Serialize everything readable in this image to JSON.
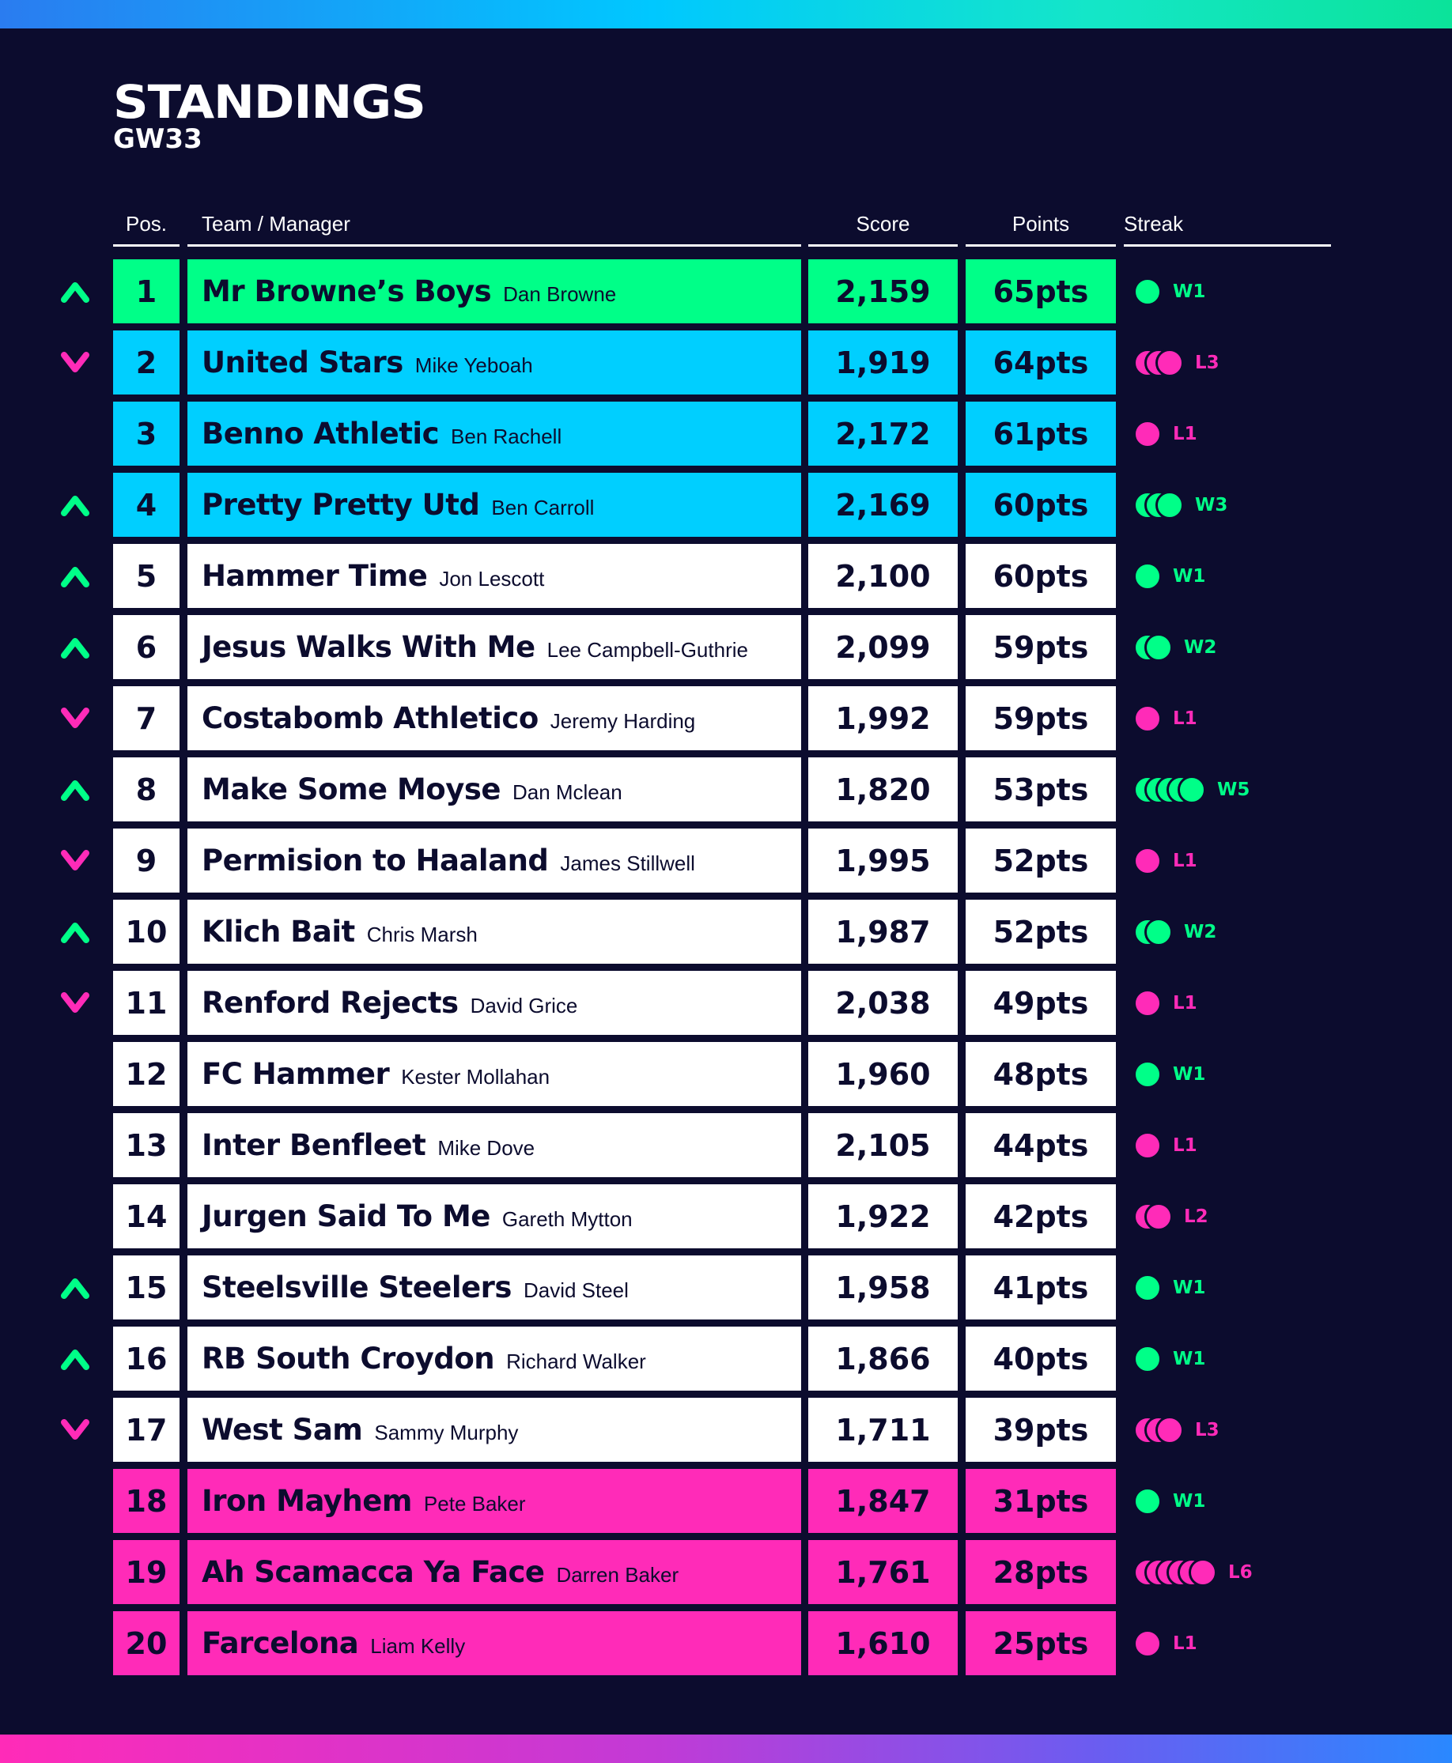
{
  "header": {
    "title": "STANDINGS",
    "subtitle": "GW33"
  },
  "columns": {
    "pos": "Pos.",
    "team": "Team / Manager",
    "score": "Score",
    "points": "Points",
    "streak": "Streak"
  },
  "colors": {
    "green": "#00ff88",
    "blue": "#00cfff",
    "white": "#ffffff",
    "pink": "#ff2bb8",
    "navy": "#0c0c2e"
  },
  "rows": [
    {
      "pos": "1",
      "team": "Mr Browne’s Boys",
      "manager": "Dan Browne",
      "score": "2,159",
      "points": "65pts",
      "move": "up",
      "zone": "green",
      "streak": {
        "label": "W1",
        "result": "W",
        "count": 1
      }
    },
    {
      "pos": "2",
      "team": "United Stars",
      "manager": "Mike Yeboah",
      "score": "1,919",
      "points": "64pts",
      "move": "down",
      "zone": "blue",
      "streak": {
        "label": "L3",
        "result": "L",
        "count": 3
      }
    },
    {
      "pos": "3",
      "team": "Benno Athletic",
      "manager": "Ben Rachell",
      "score": "2,172",
      "points": "61pts",
      "move": "none",
      "zone": "blue",
      "streak": {
        "label": "L1",
        "result": "L",
        "count": 1
      }
    },
    {
      "pos": "4",
      "team": "Pretty Pretty Utd",
      "manager": "Ben Carroll",
      "score": "2,169",
      "points": "60pts",
      "move": "up",
      "zone": "blue",
      "streak": {
        "label": "W3",
        "result": "W",
        "count": 3
      }
    },
    {
      "pos": "5",
      "team": "Hammer Time",
      "manager": "Jon Lescott",
      "score": "2,100",
      "points": "60pts",
      "move": "up",
      "zone": "white",
      "streak": {
        "label": "W1",
        "result": "W",
        "count": 1
      }
    },
    {
      "pos": "6",
      "team": "Jesus Walks With Me",
      "manager": "Lee Campbell-Guthrie",
      "score": "2,099",
      "points": "59pts",
      "move": "up",
      "zone": "white",
      "streak": {
        "label": "W2",
        "result": "W",
        "count": 2
      }
    },
    {
      "pos": "7",
      "team": "Costabomb Athletico",
      "manager": "Jeremy Harding",
      "score": "1,992",
      "points": "59pts",
      "move": "down",
      "zone": "white",
      "streak": {
        "label": "L1",
        "result": "L",
        "count": 1
      }
    },
    {
      "pos": "8",
      "team": "Make Some Moyse",
      "manager": "Dan Mclean",
      "score": "1,820",
      "points": "53pts",
      "move": "up",
      "zone": "white",
      "streak": {
        "label": "W5",
        "result": "W",
        "count": 5
      }
    },
    {
      "pos": "9",
      "team": "Permision to Haaland",
      "manager": "James Stillwell",
      "score": "1,995",
      "points": "52pts",
      "move": "down",
      "zone": "white",
      "streak": {
        "label": "L1",
        "result": "L",
        "count": 1
      }
    },
    {
      "pos": "10",
      "team": "Klich Bait",
      "manager": "Chris Marsh",
      "score": "1,987",
      "points": "52pts",
      "move": "up",
      "zone": "white",
      "streak": {
        "label": "W2",
        "result": "W",
        "count": 2
      }
    },
    {
      "pos": "11",
      "team": "Renford Rejects",
      "manager": "David Grice",
      "score": "2,038",
      "points": "49pts",
      "move": "down",
      "zone": "white",
      "streak": {
        "label": "L1",
        "result": "L",
        "count": 1
      }
    },
    {
      "pos": "12",
      "team": "FC Hammer",
      "manager": "Kester Mollahan",
      "score": "1,960",
      "points": "48pts",
      "move": "none",
      "zone": "white",
      "streak": {
        "label": "W1",
        "result": "W",
        "count": 1
      }
    },
    {
      "pos": "13",
      "team": "Inter Benfleet",
      "manager": "Mike Dove",
      "score": "2,105",
      "points": "44pts",
      "move": "none",
      "zone": "white",
      "streak": {
        "label": "L1",
        "result": "L",
        "count": 1
      }
    },
    {
      "pos": "14",
      "team": "Jurgen Said To Me",
      "manager": "Gareth Mytton",
      "score": "1,922",
      "points": "42pts",
      "move": "none",
      "zone": "white",
      "streak": {
        "label": "L2",
        "result": "L",
        "count": 2
      }
    },
    {
      "pos": "15",
      "team": "Steelsville Steelers",
      "manager": "David Steel",
      "score": "1,958",
      "points": "41pts",
      "move": "up",
      "zone": "white",
      "streak": {
        "label": "W1",
        "result": "W",
        "count": 1
      }
    },
    {
      "pos": "16",
      "team": "RB South Croydon",
      "manager": "Richard Walker",
      "score": "1,866",
      "points": "40pts",
      "move": "up",
      "zone": "white",
      "streak": {
        "label": "W1",
        "result": "W",
        "count": 1
      }
    },
    {
      "pos": "17",
      "team": "West Sam",
      "manager": "Sammy Murphy",
      "score": "1,711",
      "points": "39pts",
      "move": "down",
      "zone": "white",
      "streak": {
        "label": "L3",
        "result": "L",
        "count": 3
      }
    },
    {
      "pos": "18",
      "team": "Iron Mayhem",
      "manager": "Pete Baker",
      "score": "1,847",
      "points": "31pts",
      "move": "none",
      "zone": "pink",
      "streak": {
        "label": "W1",
        "result": "W",
        "count": 1
      }
    },
    {
      "pos": "19",
      "team": "Ah Scamacca Ya Face",
      "manager": "Darren Baker",
      "score": "1,761",
      "points": "28pts",
      "move": "none",
      "zone": "pink",
      "streak": {
        "label": "L6",
        "result": "L",
        "count": 6
      }
    },
    {
      "pos": "20",
      "team": "Farcelona",
      "manager": "Liam Kelly",
      "score": "1,610",
      "points": "25pts",
      "move": "none",
      "zone": "pink",
      "streak": {
        "label": "L1",
        "result": "L",
        "count": 1
      }
    }
  ]
}
